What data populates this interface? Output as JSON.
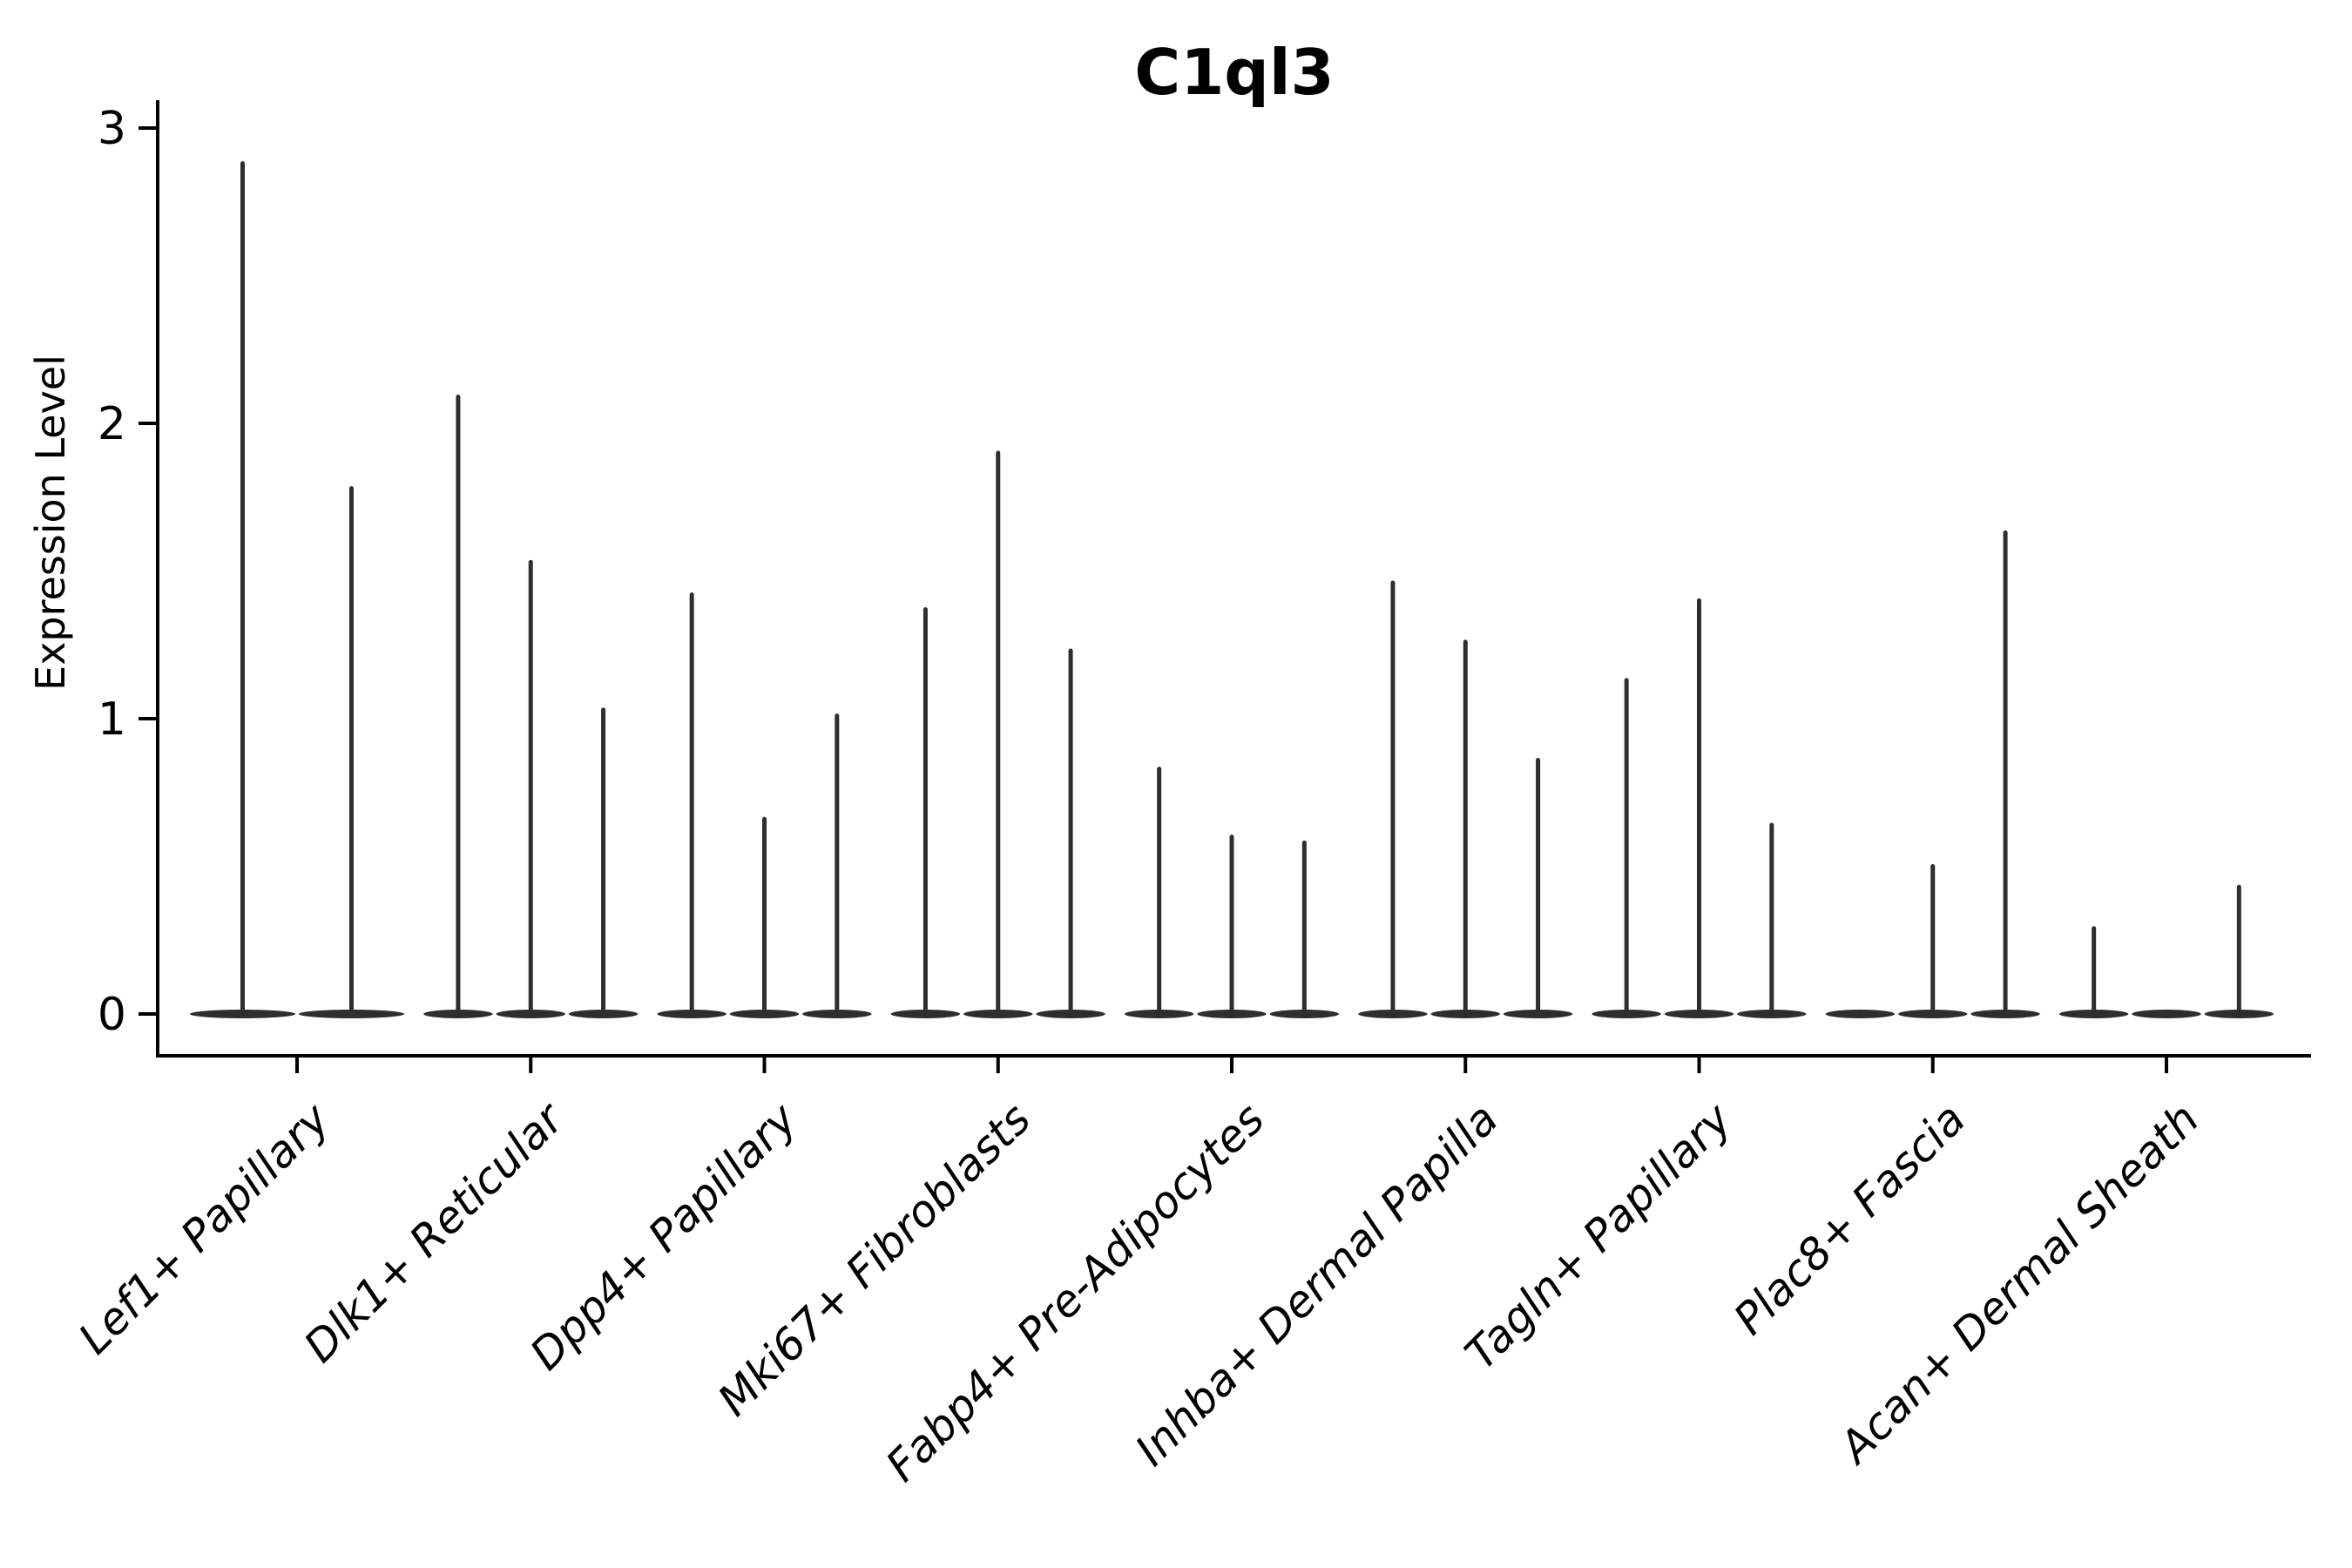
{
  "chart_data": {
    "type": "violin",
    "title": "C1ql3",
    "ylabel": "Expression Level",
    "xlabel": "",
    "ylim": [
      0,
      3
    ],
    "yticks": [
      0,
      1,
      2,
      3
    ],
    "grid": false,
    "legend": false,
    "x_tick_rotation": 45,
    "violin_color": "#2e2e2e",
    "axis_color": "#000000",
    "background_color": "#ffffff",
    "style_note": "ultra-thin violins: each renders as a vertical spike rising from a flat lens-shaped base at y=0; a value of 0 means a flat violin with no spike",
    "categories": [
      "Lef1+ Papillary",
      "Dlk1+ Reticular",
      "Dpp4+ Papillary",
      "Mki67+ Fibroblasts",
      "Fabp4+ Pre-Adipocytes",
      "Inhba+ Dermal Papilla",
      "Tagln+ Papillary",
      "Plac8+ Fascia",
      "Acan+ Dermal Sheath"
    ],
    "series": [
      {
        "name": "Lef1+ Papillary",
        "violin_max_expression": [
          2.88,
          1.78
        ]
      },
      {
        "name": "Dlk1+ Reticular",
        "violin_max_expression": [
          2.09,
          1.53,
          1.03
        ]
      },
      {
        "name": "Dpp4+ Papillary",
        "violin_max_expression": [
          1.42,
          0.66,
          1.01
        ]
      },
      {
        "name": "Mki67+ Fibroblasts",
        "violin_max_expression": [
          1.37,
          1.9,
          1.23
        ]
      },
      {
        "name": "Fabp4+ Pre-Adipocytes",
        "violin_max_expression": [
          0.83,
          0.6,
          0.58
        ]
      },
      {
        "name": "Inhba+ Dermal Papilla",
        "violin_max_expression": [
          1.46,
          1.26,
          0.86
        ]
      },
      {
        "name": "Tagln+ Papillary",
        "violin_max_expression": [
          1.13,
          1.4,
          0.64
        ]
      },
      {
        "name": "Plac8+ Fascia",
        "violin_max_expression": [
          0.0,
          0.5,
          1.63
        ]
      },
      {
        "name": "Acan+ Dermal Sheath",
        "violin_max_expression": [
          0.29,
          0.0,
          0.43
        ]
      }
    ]
  }
}
